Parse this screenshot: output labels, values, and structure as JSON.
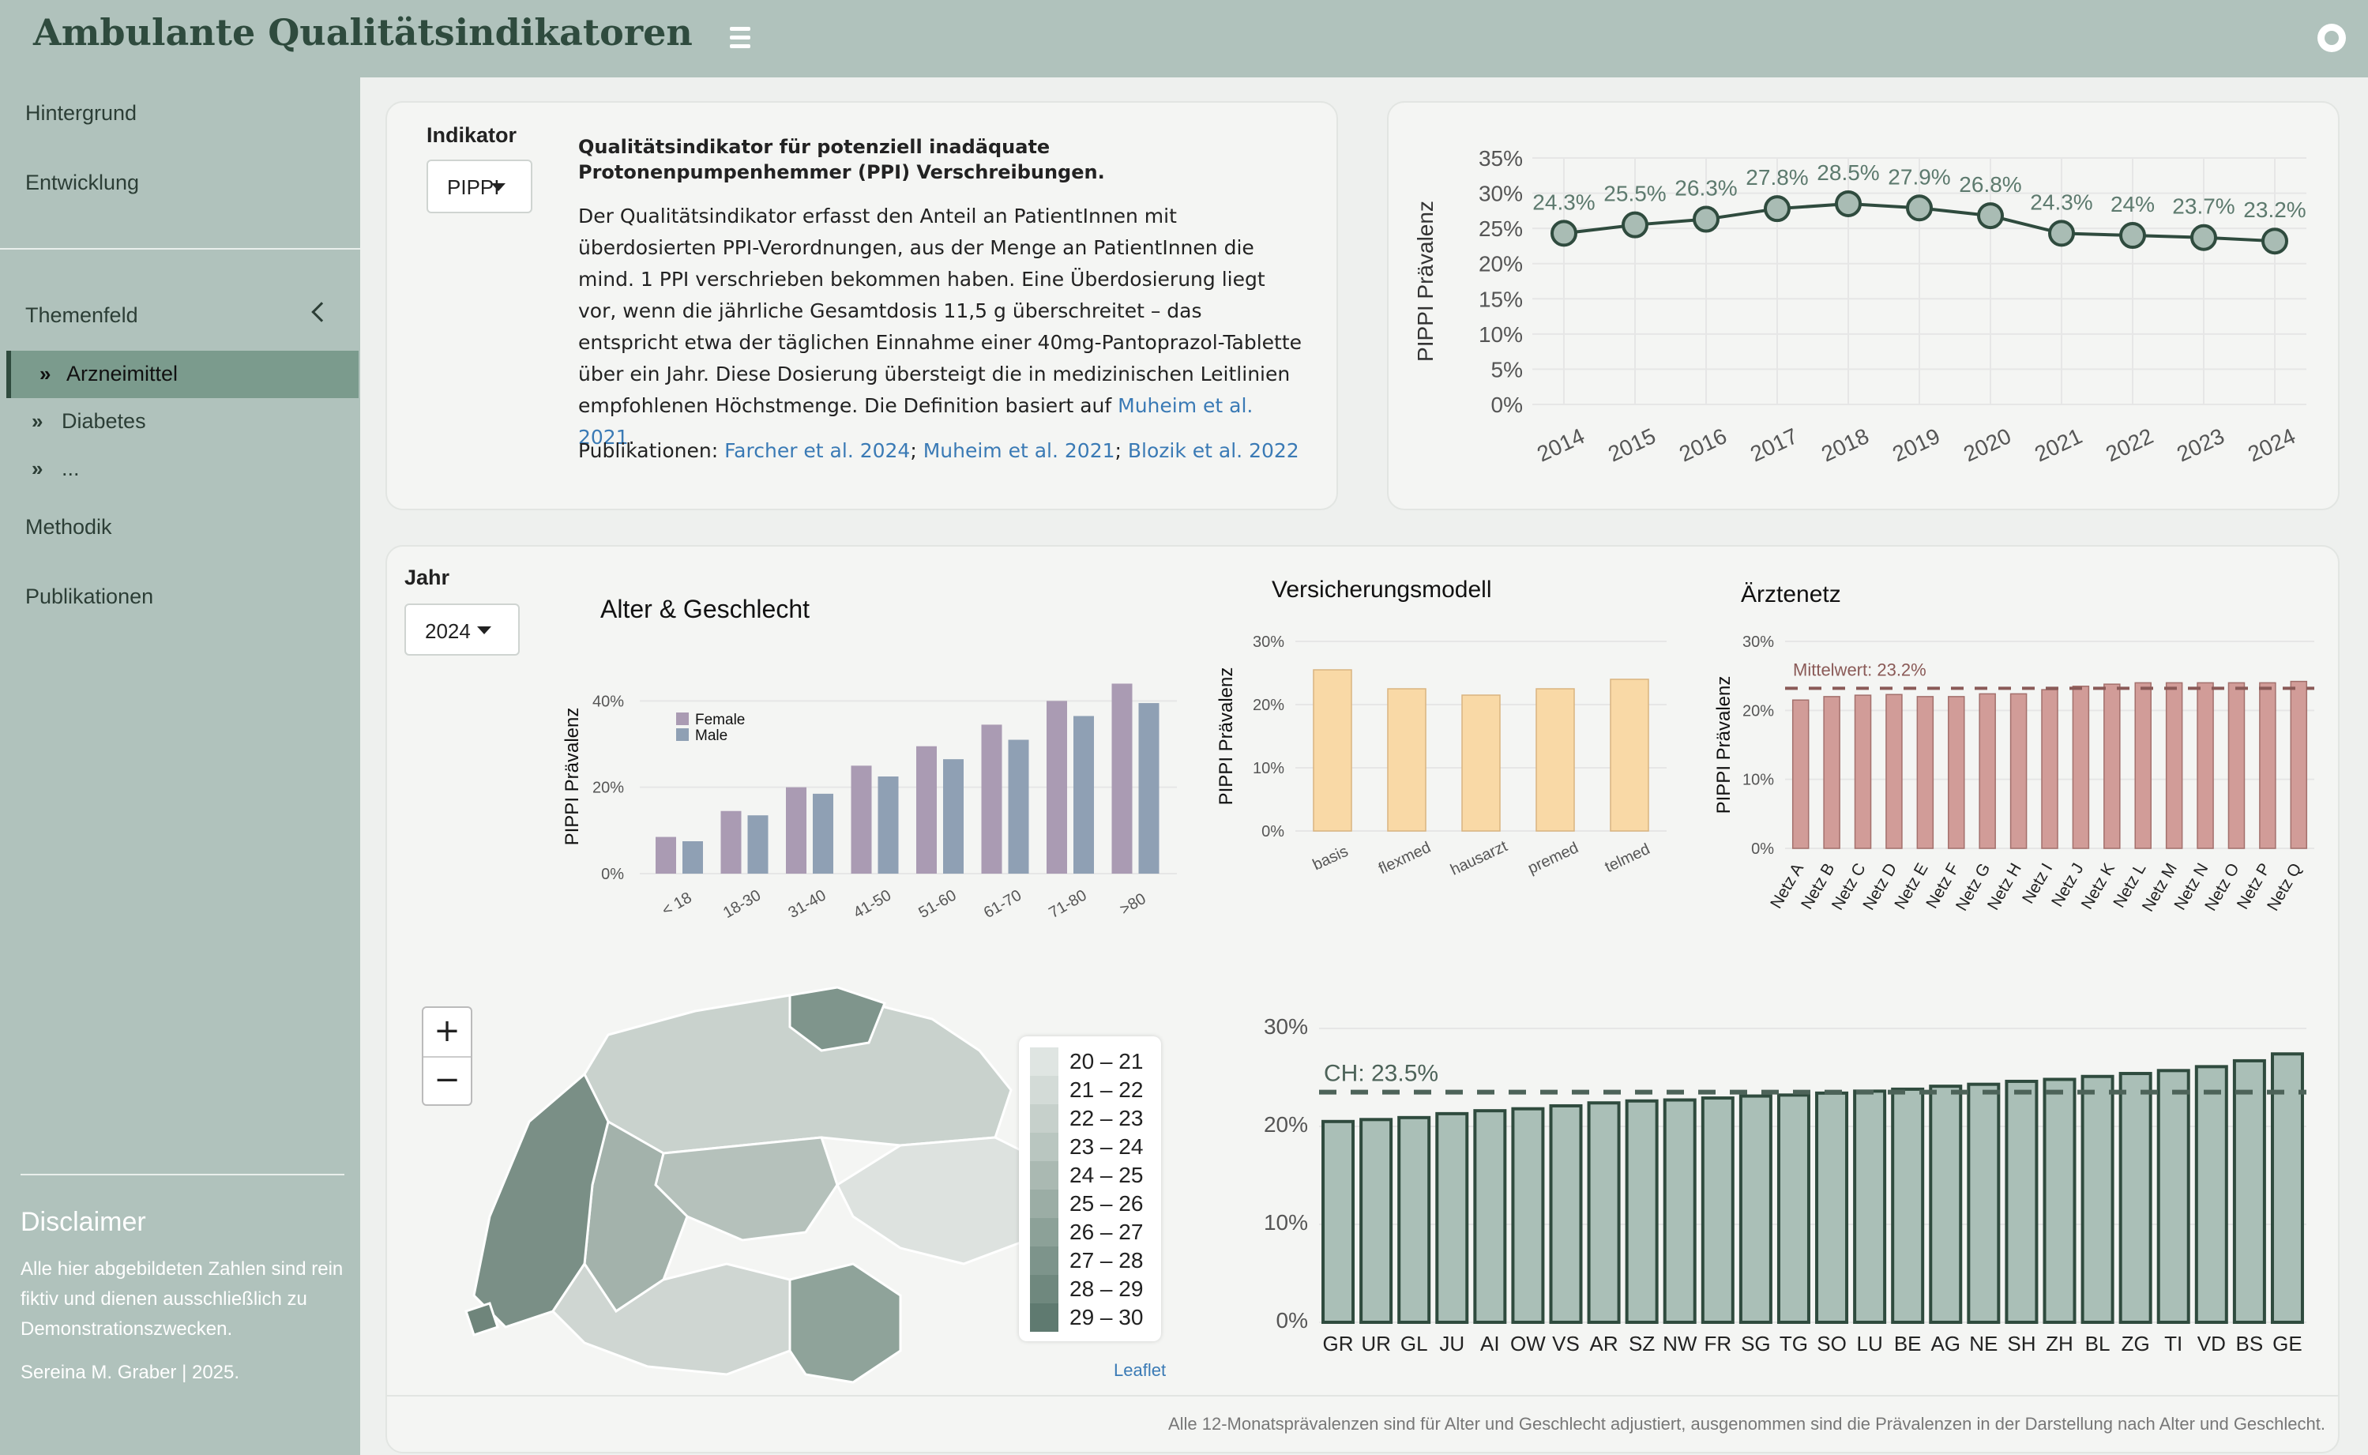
{
  "header": {
    "title": "Ambulante Qualitätsindikatoren"
  },
  "sidebar": {
    "items": [
      {
        "label": "Hintergrund"
      },
      {
        "label": "Entwicklung"
      },
      {
        "label": "Themenfeld"
      },
      {
        "label": "Methodik"
      },
      {
        "label": "Publikationen"
      }
    ],
    "sub_items": [
      {
        "icon": "»",
        "label": "Arzneimittel",
        "active": true
      },
      {
        "icon": "»",
        "label": "Diabetes"
      },
      {
        "icon": "»",
        "label": "..."
      }
    ],
    "disclaimer": {
      "title": "Disclaimer",
      "text": "Alle hier abgebildeten Zahlen sind rein fiktiv und dienen ausschließlich zu Demonstrationszwecken.",
      "author": "Sereina M. Graber | 2025."
    }
  },
  "indicator": {
    "label": "Indikator",
    "selected": "PIPPI",
    "title": "Qualitätsindikator für potenziell inadäquate Protonenpumpenhemmer (PPI) Verschreibungen.",
    "body": "Der Qualitätsindikator erfasst den Anteil an PatientInnen mit überdosierten PPI-Verordnungen, aus der Menge an PatientInnen die mind. 1 PPI verschrieben bekommen haben. Eine Überdosierung liegt vor, wenn die jährliche Gesamtdosis 11,5 g überschreitet – das entspricht etwa der täglichen Einnahme einer 40mg-Pantoprazol-Tablette über ein Jahr. Diese Dosierung übersteigt die in medizinischen Leitlinien empfohlenen Höchstmenge. Die Definition basiert auf",
    "body_link": "Muheim et al. 2021",
    "pub_label": "Publikationen:",
    "publications": [
      "Farcher et al. 2024",
      "Muheim et al. 2021",
      "Blozik et al. 2022"
    ]
  },
  "year_filter": {
    "label": "Jahr",
    "selected": "2024"
  },
  "map": {
    "legend": [
      "20 – 21",
      "21 – 22",
      "22 – 23",
      "23 – 24",
      "24 – 25",
      "25 – 26",
      "26 – 27",
      "27 – 28",
      "28 – 29",
      "29 – 30"
    ],
    "legend_colors": [
      "#dfe5e2",
      "#d3dbd7",
      "#c6d0cb",
      "#b9c6c0",
      "#aab9b2",
      "#9bada5",
      "#8ca198",
      "#7d948b",
      "#6f887e",
      "#5f7a70"
    ],
    "zoom_in": "+",
    "zoom_out": "−",
    "attribution": "Leaflet"
  },
  "footnote": "Alle 12-Monatsprävalenzen sind für Alter und Geschlecht adjustiert, ausgenommen sind die Prävalenzen in der Darstellung nach Alter und Geschlecht.",
  "colors": {
    "accent": "#2f4b3e",
    "sidebar": "#b0c2bc",
    "link": "#3a7ab5"
  },
  "chart_data": [
    {
      "id": "trend",
      "type": "line",
      "x": [
        "2014",
        "2015",
        "2016",
        "2017",
        "2018",
        "2019",
        "2020",
        "2021",
        "2022",
        "2023",
        "2024"
      ],
      "values": [
        24.3,
        25.5,
        26.3,
        27.8,
        28.5,
        27.9,
        26.8,
        24.3,
        24,
        23.7,
        23.2
      ],
      "labels": [
        "24.3%",
        "25.5%",
        "26.3%",
        "27.8%",
        "28.5%",
        "27.9%",
        "26.8%",
        "24.3%",
        "24%",
        "23.7%",
        "23.2%"
      ],
      "ylabel": "PIPPI  Prävalenz",
      "yticks": [
        "0%",
        "5%",
        "10%",
        "15%",
        "20%",
        "25%",
        "30%",
        "35%"
      ],
      "ylim": [
        0,
        35
      ],
      "grid": true
    },
    {
      "id": "age_sex",
      "type": "bar",
      "title": "Alter & Geschlecht",
      "categories": [
        "< 18",
        "18-30",
        "31-40",
        "41-50",
        "51-60",
        "61-70",
        "71-80",
        ">80"
      ],
      "series": [
        {
          "name": "Female",
          "color": "#aa9bb3",
          "values": [
            8.5,
            14.5,
            20,
            25,
            29.5,
            34.5,
            40,
            44
          ]
        },
        {
          "name": "Male",
          "color": "#8fa0b4",
          "values": [
            7.5,
            13.5,
            18.5,
            22.5,
            26.5,
            31,
            36.5,
            39.5
          ]
        }
      ],
      "ylabel": "PIPPI Prävalenz",
      "yticks": [
        "0%",
        "20%",
        "40%"
      ],
      "ylim": [
        0,
        45
      ],
      "legend": "top-left"
    },
    {
      "id": "insurance",
      "type": "bar",
      "title": "Versicherungsmodell",
      "categories": [
        "basis",
        "flexmed",
        "hausarzt",
        "premed",
        "telmed"
      ],
      "values": [
        25.5,
        22.5,
        21.5,
        22.5,
        24
      ],
      "color": "#f9d9a6",
      "ylabel": "PIPPI Prävalenz",
      "yticks": [
        "0%",
        "10%",
        "20%",
        "30%"
      ],
      "ylim": [
        0,
        30
      ]
    },
    {
      "id": "networks",
      "type": "bar",
      "title": "Ärztenetz",
      "categories": [
        "Netz A",
        "Netz B",
        "Netz C",
        "Netz D",
        "Netz E",
        "Netz F",
        "Netz G",
        "Netz H",
        "Netz I",
        "Netz J",
        "Netz K",
        "Netz L",
        "Netz M",
        "Netz N",
        "Netz O",
        "Netz P",
        "Netz Q"
      ],
      "values": [
        21.5,
        22,
        22.2,
        22.3,
        22,
        22,
        22.4,
        22.4,
        23,
        23.5,
        23.8,
        24,
        24,
        24,
        24,
        24,
        24.2
      ],
      "color": "#d19c98",
      "mean": 23.2,
      "mean_label": "Mittelwert: 23.2%",
      "ylabel": "PIPPI Prävalenz",
      "yticks": [
        "0%",
        "10%",
        "20%",
        "30%"
      ],
      "ylim": [
        0,
        30
      ]
    },
    {
      "id": "cantons",
      "type": "bar",
      "categories": [
        "GR",
        "UR",
        "GL",
        "JU",
        "AI",
        "OW",
        "VS",
        "AR",
        "SZ",
        "NW",
        "FR",
        "SG",
        "TG",
        "SO",
        "LU",
        "BE",
        "AG",
        "NE",
        "SH",
        "ZH",
        "BL",
        "ZG",
        "TI",
        "VD",
        "BS",
        "GE"
      ],
      "values": [
        20.5,
        20.7,
        20.9,
        21.3,
        21.6,
        21.8,
        22.1,
        22.4,
        22.6,
        22.7,
        22.9,
        23.1,
        23.2,
        23.4,
        23.6,
        23.8,
        24.1,
        24.3,
        24.6,
        24.8,
        25.1,
        25.4,
        25.7,
        26.1,
        26.7,
        27.4
      ],
      "color": "#aabfb7",
      "reference": 23.5,
      "reference_label": "CH: 23.5%",
      "yticks": [
        "0%",
        "10%",
        "20%",
        "30%"
      ],
      "ylim": [
        0,
        30
      ]
    }
  ]
}
